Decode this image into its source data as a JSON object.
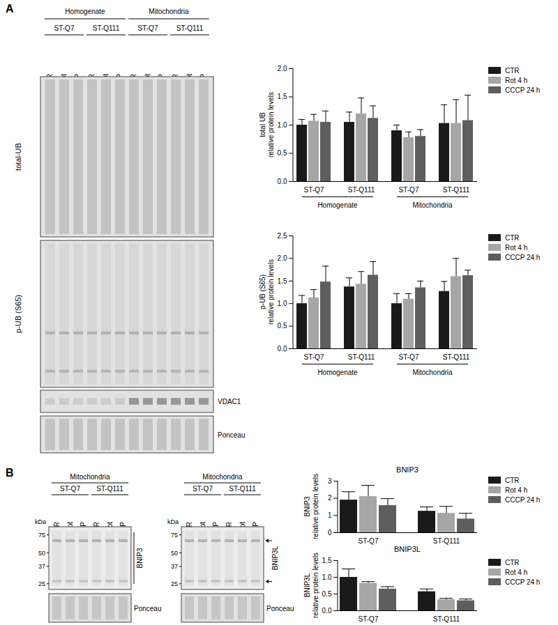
{
  "chart_data": [
    {
      "type": "bar",
      "panel": "A",
      "y_label": [
        "total UB",
        "relative protein levels"
      ],
      "categories": [
        "ST-Q7",
        "ST-Q111",
        "ST-Q7",
        "ST-Q111"
      ],
      "category_groups": [
        "Homogenate",
        "Homogenate",
        "Mitochondria",
        "Mitochondria"
      ],
      "series": [
        {
          "name": "CTR",
          "color": "#1a1a1a",
          "values": [
            1.0,
            1.05,
            0.9,
            1.03
          ],
          "errors": [
            0.1,
            0.18,
            0.1,
            0.33
          ]
        },
        {
          "name": "Rot 4 h",
          "color": "#a6a6a6",
          "values": [
            1.07,
            1.2,
            0.78,
            1.03
          ],
          "errors": [
            0.12,
            0.28,
            0.1,
            0.42
          ]
        },
        {
          "name": "CCCP 24 h",
          "color": "#5e5e5e",
          "values": [
            1.05,
            1.12,
            0.8,
            1.08
          ],
          "errors": [
            0.2,
            0.22,
            0.12,
            0.45
          ]
        }
      ],
      "ylim": [
        0,
        2
      ],
      "yticks": [
        {
          "value": 0,
          "label": "0.0"
        },
        0.5,
        {
          "value": 1,
          "label": "1.0"
        },
        1.5,
        {
          "value": 2,
          "label": "2.0"
        }
      ],
      "legend": "right"
    },
    {
      "type": "bar",
      "panel": "A",
      "y_label": [
        "p-UB (S65)",
        "relative protein levels"
      ],
      "categories": [
        "ST-Q7",
        "ST-Q111",
        "ST-Q7",
        "ST-Q111"
      ],
      "category_groups": [
        "Homogenate",
        "Homogenate",
        "Mitochondria",
        "Mitochondria"
      ],
      "series": [
        {
          "name": "CTR",
          "color": "#1a1a1a",
          "values": [
            1.0,
            1.37,
            1.0,
            1.27
          ],
          "errors": [
            0.18,
            0.2,
            0.22,
            0.22
          ]
        },
        {
          "name": "Rot 4 h",
          "color": "#a6a6a6",
          "values": [
            1.13,
            1.43,
            1.1,
            1.6
          ],
          "errors": [
            0.18,
            0.28,
            0.12,
            0.4
          ]
        },
        {
          "name": "CCCP 24 h",
          "color": "#5e5e5e",
          "values": [
            1.48,
            1.63,
            1.35,
            1.62
          ],
          "errors": [
            0.35,
            0.3,
            0.15,
            0.12
          ]
        }
      ],
      "ylim": [
        0,
        2.5
      ],
      "yticks": [
        {
          "value": 0,
          "label": "0.0"
        },
        0.5,
        {
          "value": 1,
          "label": "1.0"
        },
        1.5,
        {
          "value": 2,
          "label": "2.0"
        },
        2.5
      ],
      "legend": "right"
    },
    {
      "type": "bar",
      "panel": "B",
      "title": "BNIP3",
      "y_label": [
        "BNIP3",
        "relative protein levels"
      ],
      "categories": [
        "ST-Q7",
        "ST-Q111"
      ],
      "series": [
        {
          "name": "CTR",
          "color": "#1a1a1a",
          "values": [
            1.9,
            1.25
          ],
          "errors": [
            0.48,
            0.25
          ]
        },
        {
          "name": "Rot 4 h",
          "color": "#a6a6a6",
          "values": [
            2.1,
            1.13
          ],
          "errors": [
            0.65,
            0.4
          ]
        },
        {
          "name": "CCCP 24 h",
          "color": "#5e5e5e",
          "values": [
            1.58,
            0.8
          ],
          "errors": [
            0.4,
            0.33
          ]
        }
      ],
      "ylim": [
        0,
        3
      ],
      "yticks": [
        0,
        1,
        2,
        3
      ],
      "legend": "right"
    },
    {
      "type": "bar",
      "panel": "B",
      "title": "BNIP3L",
      "y_label": [
        "BNIP3L",
        "relative protein levels"
      ],
      "categories": [
        "ST-Q7",
        "ST-Q111"
      ],
      "series": [
        {
          "name": "CTR",
          "color": "#1a1a1a",
          "values": [
            1.0,
            0.57
          ],
          "errors": [
            0.25,
            0.08
          ]
        },
        {
          "name": "Rot 4 h",
          "color": "#a6a6a6",
          "values": [
            0.82,
            0.33
          ],
          "errors": [
            0.05,
            0.04
          ]
        },
        {
          "name": "CCCP 24 h",
          "color": "#5e5e5e",
          "values": [
            0.65,
            0.3
          ],
          "errors": [
            0.07,
            0.05
          ]
        }
      ],
      "ylim": [
        0,
        1.5
      ],
      "yticks": [
        {
          "value": 0,
          "label": "0.0"
        },
        0.5,
        {
          "value": 1,
          "label": "1.0"
        },
        1.5
      ],
      "legend": "right"
    }
  ],
  "blots": {
    "A": {
      "panel": "A",
      "headers": [
        {
          "label": "Homogenate",
          "strains": [
            "ST-Q7",
            "ST-Q111"
          ]
        },
        {
          "label": "Mitochondria",
          "strains": [
            "ST-Q7",
            "ST-Q111"
          ]
        }
      ],
      "lanes": [
        "CTR",
        "Rot",
        "CCCP"
      ],
      "blots": [
        {
          "label": "total-UB"
        },
        {
          "label": "p-UB (S65)"
        },
        {
          "label": "VDAC1"
        },
        {
          "label": "Ponceau"
        }
      ]
    },
    "B": {
      "panel": "B",
      "blots": [
        {
          "header": "Mitochondria",
          "strains": [
            "ST-Q7",
            "ST-Q111"
          ],
          "lanes": [
            "CTR",
            "Rot",
            "CCCP"
          ],
          "kda_label": "kDa",
          "markers": [
            75,
            50,
            37,
            25
          ],
          "label": "BNIP3",
          "loading": "Ponceau"
        },
        {
          "header": "Mitochondria",
          "strains": [
            "ST-Q7",
            "ST-Q111"
          ],
          "lanes": [
            "CTR",
            "Rot",
            "CCCP"
          ],
          "kda_label": "kDa",
          "markers": [
            75,
            50,
            37,
            25
          ],
          "label": "BNIP3L",
          "loading": "Ponceau"
        }
      ]
    }
  }
}
